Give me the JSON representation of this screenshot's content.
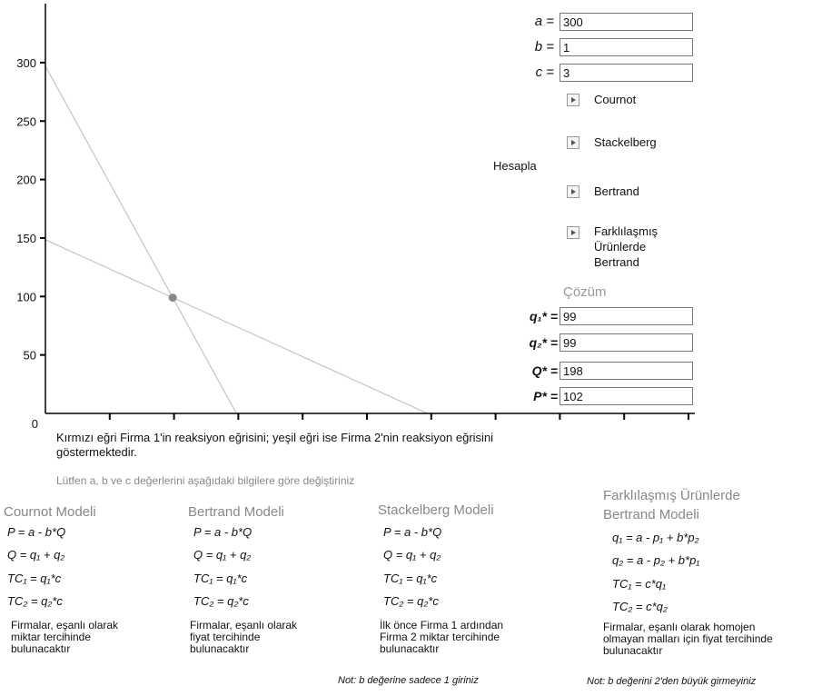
{
  "params": {
    "a": {
      "label": "a =",
      "value": "300"
    },
    "b": {
      "label": "b =",
      "value": "1"
    },
    "c": {
      "label": "c =",
      "value": "3"
    }
  },
  "buttons": {
    "group_label": "Hesapla",
    "cournot": "Cournot",
    "stackelberg": "Stackelberg",
    "bertrand": "Bertrand",
    "diff_bertrand": [
      "Farklılaşmış",
      "Ürünlerde",
      "Bertrand"
    ]
  },
  "solution": {
    "title": "Çözüm",
    "q1": {
      "label": "q₁* =",
      "value": "99"
    },
    "q2": {
      "label": "q₂* =",
      "value": "99"
    },
    "Q": {
      "label": "Q* =",
      "value": "198"
    },
    "P": {
      "label": "P* =",
      "value": "102"
    }
  },
  "chart_data": {
    "type": "line",
    "y_ticks": [
      "0",
      "50",
      "100",
      "150",
      "200",
      "250",
      "300"
    ],
    "ylim": [
      0,
      300
    ],
    "xlim": [
      0,
      300
    ],
    "series": [
      {
        "points": [
          [
            0,
            297
          ],
          [
            99,
            99
          ],
          [
            148.5,
            0
          ]
        ]
      },
      {
        "points": [
          [
            0,
            148.5
          ],
          [
            99,
            99
          ],
          [
            297,
            0
          ]
        ]
      }
    ],
    "equilibrium": [
      99,
      99
    ],
    "colors": {
      "line": "#c8c8c8",
      "point": "#8a8a8a",
      "axis": "#000000"
    }
  },
  "caption": {
    "line1": "Kırmızı eğri Firma 1'in reaksiyon eğrisini; yeşil eğri ise Firma 2'nin reaksiyon eğrisini",
    "line2": "göstermektedir."
  },
  "instruction": "Lütfen a, b ve c değerlerini aşağıdaki bilgilere göre değiştiriniz",
  "models": [
    {
      "title": [
        "Cournot Modeli"
      ],
      "formulas": [
        "P = a - b*Q",
        "Q = q₁ + q₂",
        "TC₁ = q₁*c",
        "TC₂ = q₂*c"
      ],
      "desc": [
        "Firmalar, eşanlı olarak",
        "miktar tercihinde",
        "bulunacaktır"
      ],
      "note": ""
    },
    {
      "title": [
        "Bertrand Modeli"
      ],
      "formulas": [
        "P = a - b*Q",
        "Q = q₁ + q₂",
        "TC₁ = q₁*c",
        "TC₂ = q₂*c"
      ],
      "desc": [
        "Firmalar, eşanlı olarak",
        "fiyat tercihinde",
        "bulunacaktır"
      ],
      "note": ""
    },
    {
      "title": [
        "Stackelberg Modeli"
      ],
      "formulas": [
        "P = a - b*Q",
        "Q = q₁ + q₂",
        "TC₁ = q₁*c",
        "TC₂ = q₂*c"
      ],
      "desc": [
        "İlk önce Firma 1 ardından",
        "Firma 2 miktar tercihinde",
        "bulunacaktır"
      ],
      "note": "Not: b değerine sadece 1 giriniz"
    },
    {
      "title": [
        "Farklılaşmış Ürünlerde",
        "Bertrand Modeli"
      ],
      "formulas": [
        "q₁ = a - p₁ + b*p₂",
        "q₂ = a - p₂ + b*p₁",
        "TC₁ = c*q₁",
        "TC₂ = c*q₂"
      ],
      "desc": [
        "Firmalar, eşanlı olarak homojen",
        "olmayan malları için fiyat tercihinde",
        "bulunacaktır"
      ],
      "note": "Not: b değerini 2'den büyük girmeyiniz"
    }
  ]
}
